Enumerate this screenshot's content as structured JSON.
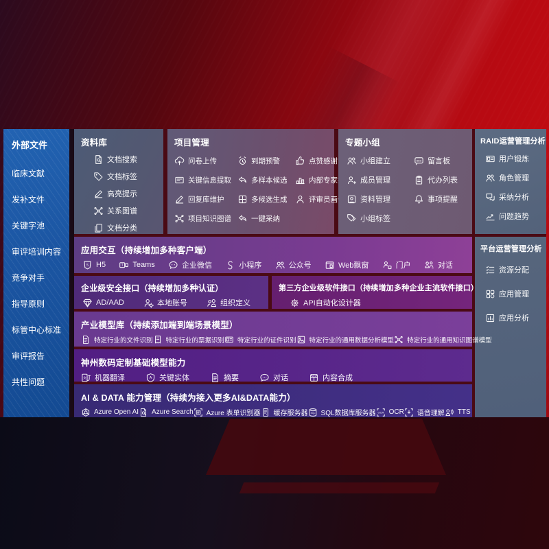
{
  "colors": {
    "background_red": "#b20a11",
    "sidebar_blue": "#1d5aa8",
    "slate_panel": "#56657c",
    "purple_row": "#6f3d93",
    "deep_violet": "#53218a",
    "indigo_row": "#3b2c79",
    "magenta_box": "#6e2276",
    "backdrop_maroon": "#4a0a14"
  },
  "left_sidebar": {
    "title": "外部文件",
    "items": [
      "临床文献",
      "发补文件",
      "关键字池",
      "审评培训内容",
      "竞争对手",
      "指导原则",
      "标管中心标准",
      "审评报告",
      "共性问题"
    ]
  },
  "sections": {
    "library": {
      "title": "资料库",
      "items": [
        {
          "label": "文档搜索",
          "icon": "doc-search-icon"
        },
        {
          "label": "文档标签",
          "icon": "doc-tag-icon"
        },
        {
          "label": "高亮提示",
          "icon": "highlight-icon"
        },
        {
          "label": "关系图谱",
          "icon": "relation-graph-icon"
        },
        {
          "label": "文档分类",
          "icon": "doc-category-icon"
        }
      ]
    },
    "project": {
      "title": "项目管理",
      "items": [
        {
          "label": "问卷上传",
          "icon": "questionnaire-upload-icon"
        },
        {
          "label": "关键信息提取",
          "icon": "key-info-extract-icon"
        },
        {
          "label": "回复库维护",
          "icon": "reply-library-icon"
        },
        {
          "label": "项目知识图谱",
          "icon": "project-graph-icon"
        },
        {
          "label": "到期预警",
          "icon": "due-warning-icon"
        },
        {
          "label": "多样本候选",
          "icon": "multi-sample-icon"
        },
        {
          "label": "多候选生成",
          "icon": "multi-generate-icon"
        },
        {
          "label": "一键采纳",
          "icon": "one-key-adopt-icon"
        },
        {
          "label": "点赞感谢",
          "icon": "like-thanks-icon"
        },
        {
          "label": "内部专家排名",
          "icon": "expert-rank-icon"
        },
        {
          "label": "评审员画像",
          "icon": "reviewer-profile-icon"
        }
      ]
    },
    "group": {
      "title": "专题小组",
      "items": [
        {
          "label": "小组建立",
          "icon": "group-create-icon"
        },
        {
          "label": "成员管理",
          "icon": "member-manage-icon"
        },
        {
          "label": "资料管理",
          "icon": "material-manage-icon"
        },
        {
          "label": "小组标签",
          "icon": "group-tag-icon"
        },
        {
          "label": "留言板",
          "icon": "message-board-icon"
        },
        {
          "label": "代办列表",
          "icon": "todo-list-icon"
        },
        {
          "label": "事项提醒",
          "icon": "reminder-icon"
        }
      ]
    },
    "raid": {
      "title": "RAID运营管理分析",
      "items": [
        {
          "label": "用户锻炼",
          "icon": "user-training-icon"
        },
        {
          "label": "角色管理",
          "icon": "role-manage-icon"
        },
        {
          "label": "采纳分析",
          "icon": "adoption-analysis-icon"
        },
        {
          "label": "问题趋势",
          "icon": "issue-trend-icon"
        }
      ]
    },
    "platform": {
      "title": "平台运营管理分析",
      "items": [
        {
          "label": "资源分配",
          "icon": "resource-alloc-icon"
        },
        {
          "label": "应用管理",
          "icon": "app-manage-icon"
        },
        {
          "label": "应用分析",
          "icon": "app-analysis-icon"
        }
      ]
    },
    "interact": {
      "title": "应用交互（持续增加多种客户端）",
      "items": [
        {
          "label": "H5",
          "icon": "h5-icon"
        },
        {
          "label": "Teams",
          "icon": "teams-icon"
        },
        {
          "label": "企业微信",
          "icon": "wechat-work-icon"
        },
        {
          "label": "小程序",
          "icon": "miniprogram-icon"
        },
        {
          "label": "公众号",
          "icon": "official-account-icon"
        },
        {
          "label": "Web飘窗",
          "icon": "web-popup-icon"
        },
        {
          "label": "门户",
          "icon": "portal-icon"
        },
        {
          "label": "对话",
          "icon": "dialog-people-icon"
        }
      ]
    },
    "security": {
      "title": "企业级安全接口（持续增加多种认证）",
      "items": [
        {
          "label": "AD/AAD",
          "icon": "ad-aad-icon"
        },
        {
          "label": "本地账号",
          "icon": "local-account-icon"
        },
        {
          "label": "组织定义",
          "icon": "org-define-icon"
        }
      ]
    },
    "third": {
      "title": "第三方企业级软件接口（持续增加多种企业主流软件接口）",
      "items": [
        {
          "label": "API自动化设计器",
          "icon": "api-designer-icon"
        }
      ]
    },
    "industry": {
      "title": "产业模型库（持续添加端到端场景模型）",
      "items": [
        {
          "label": "特定行业的文件识别",
          "icon": "industry-file-icon"
        },
        {
          "label": "特定行业的票据识别",
          "icon": "industry-receipt-icon"
        },
        {
          "label": "特定行业的证件识别",
          "icon": "industry-card-icon"
        },
        {
          "label": "特定行业的通用数据分析模型",
          "icon": "industry-data-model-icon"
        },
        {
          "label": "特定行业的通用知识图谱模型",
          "icon": "industry-graph-icon"
        }
      ]
    },
    "dc": {
      "title": "神州数码定制基础模型能力",
      "items": [
        {
          "label": "机器翻译",
          "icon": "machine-translate-icon"
        },
        {
          "label": "关键实体",
          "icon": "key-entity-icon"
        },
        {
          "label": "摘要",
          "icon": "summary-icon"
        },
        {
          "label": "对话",
          "icon": "dialog-icon"
        },
        {
          "label": "内容合成",
          "icon": "content-compose-icon"
        }
      ]
    },
    "ai": {
      "title": "AI & DATA 能力管理（持续为接入更多AI&DATA能力）",
      "items": [
        {
          "label": "Azure Open AI",
          "icon": "azure-openai-icon"
        },
        {
          "label": "Azure Search",
          "icon": "azure-search-icon"
        },
        {
          "label": "Azure 表单识别器",
          "icon": "azure-form-icon"
        },
        {
          "label": "缓存服务器",
          "icon": "cache-server-icon"
        },
        {
          "label": "SQL数据库服务器",
          "icon": "sql-server-icon"
        },
        {
          "label": "OCR",
          "icon": "ocr-icon"
        },
        {
          "label": "语音理解",
          "icon": "speech-icon"
        },
        {
          "label": "TTS",
          "icon": "tts-icon"
        }
      ]
    }
  }
}
